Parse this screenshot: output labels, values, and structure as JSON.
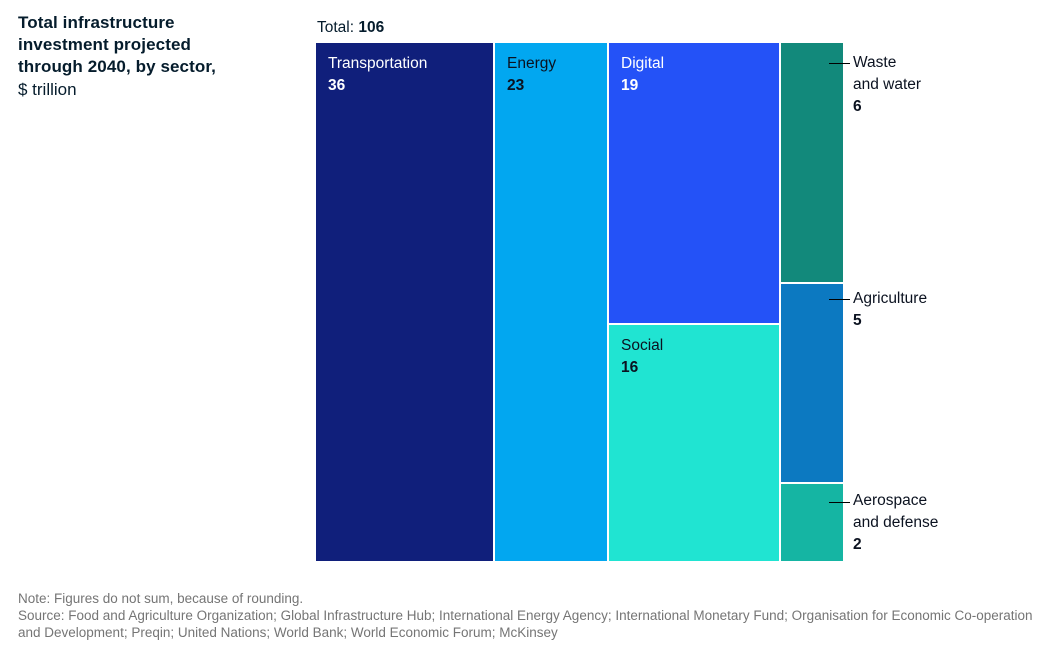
{
  "header": {
    "title_lines": [
      "Total infrastructure",
      "investment projected",
      "through 2040, by sector,"
    ],
    "unit": "$ trillion",
    "total_label": "Total:",
    "total_value": "106"
  },
  "chart_data": {
    "type": "treemap",
    "title": "Total infrastructure investment projected through 2040, by sector, $ trillion",
    "total": 106,
    "unit": "$ trillion",
    "legend_position": "none",
    "segments": [
      {
        "name": "Transportation",
        "value": "36",
        "color": "#101f7b",
        "label_position": "inside"
      },
      {
        "name": "Energy",
        "value": "23",
        "color": "#02a7f0",
        "label_position": "inside"
      },
      {
        "name": "Digital",
        "value": "19",
        "color": "#2452f7",
        "label_position": "inside"
      },
      {
        "name": "Social",
        "value": "16",
        "color": "#20e4d2",
        "label_position": "inside"
      },
      {
        "name": "Waste and water",
        "value": "6",
        "color": "#12897b",
        "label_position": "outside",
        "label_lines": [
          "Waste",
          "and water"
        ]
      },
      {
        "name": "Agriculture",
        "value": "5",
        "color": "#0c79c1",
        "label_position": "outside",
        "label_lines": [
          "Agriculture"
        ]
      },
      {
        "name": "Aerospace and defense",
        "value": "2",
        "color": "#15b5a3",
        "label_position": "outside",
        "label_lines": [
          "Aerospace",
          "and defense"
        ]
      }
    ]
  },
  "footer": {
    "note": "Note: Figures do not sum, because of rounding.",
    "source": "Source: Food and Agriculture Organization; Global Infrastructure Hub; International Energy Agency; International Monetary Fund; Organisation for Economic Co-operation and Development; Preqin; United Nations; World Bank; World Economic Forum; McKinsey"
  }
}
